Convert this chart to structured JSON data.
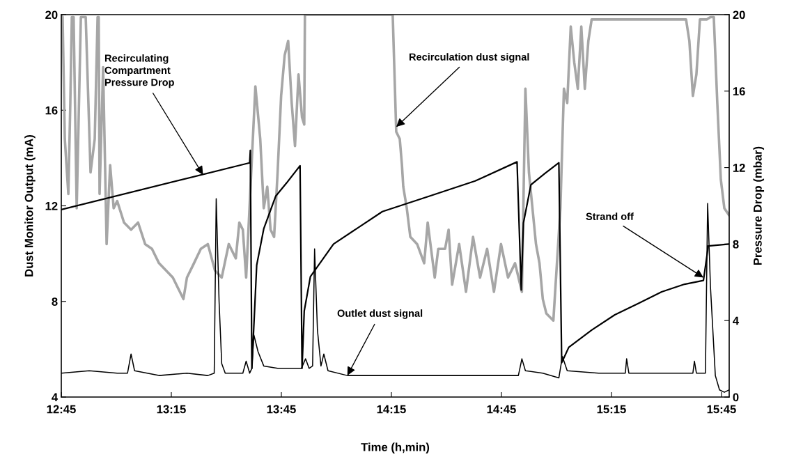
{
  "chart_data": {
    "type": "line",
    "xlabel": "Time (h,min)",
    "ylabel": "Dust Monitor Output (mA)",
    "y2label": "Pressure Drop (mbar)",
    "xlim": [
      12.75,
      15.785
    ],
    "xticks": [
      {
        "value": 12.75,
        "label": "12:45"
      },
      {
        "value": 13.25,
        "label": "13:15"
      },
      {
        "value": 13.75,
        "label": "13:45"
      },
      {
        "value": 14.25,
        "label": "14:15"
      },
      {
        "value": 14.75,
        "label": "14:45"
      },
      {
        "value": 15.25,
        "label": "15:15"
      },
      {
        "value": 15.75,
        "label": "15:45"
      }
    ],
    "ylim": [
      4,
      20
    ],
    "yticks": [
      4,
      8,
      12,
      16,
      20
    ],
    "y2lim": [
      0,
      20
    ],
    "y2ticks": [
      0,
      4,
      8,
      12,
      16,
      20
    ],
    "grid": false,
    "legend": false,
    "marker": "none",
    "series": [
      {
        "color": "#a6a6a6",
        "x": [
          12.75,
          12.756,
          12.766,
          12.782,
          12.791,
          12.798,
          12.806,
          12.82,
          12.839,
          12.861,
          12.883,
          12.902,
          12.915,
          12.92,
          12.924,
          12.94,
          12.956,
          12.972,
          12.988,
          13.004,
          13.035,
          13.067,
          13.099,
          13.131,
          13.162,
          13.194,
          13.226,
          13.257,
          13.289,
          13.305,
          13.321,
          13.353,
          13.384,
          13.416,
          13.448,
          13.479,
          13.511,
          13.543,
          13.559,
          13.575,
          13.59,
          13.632,
          13.654,
          13.67,
          13.686,
          13.701,
          13.717,
          13.733,
          13.749,
          13.765,
          13.781,
          13.797,
          13.812,
          13.828,
          13.844,
          13.854,
          13.857,
          14.256,
          14.272,
          14.288,
          14.298,
          14.304,
          14.32,
          14.336,
          14.367,
          14.399,
          14.415,
          14.447,
          14.463,
          14.494,
          14.51,
          14.526,
          14.558,
          14.589,
          14.621,
          14.653,
          14.685,
          14.716,
          14.748,
          14.78,
          14.812,
          14.843,
          14.859,
          14.875,
          14.891,
          14.907,
          14.923,
          14.938,
          14.954,
          14.986,
          15.018,
          15.034,
          15.049,
          15.065,
          15.081,
          15.097,
          15.113,
          15.129,
          15.145,
          15.16,
          15.176,
          15.589,
          15.604,
          15.62,
          15.636,
          15.652,
          15.668,
          15.684,
          15.7,
          15.715,
          15.731,
          15.747,
          15.763,
          15.785
        ],
        "values": [
          20,
          19.9,
          14.8,
          12.5,
          16.3,
          19.9,
          19.9,
          11.9,
          19.9,
          19.9,
          13.4,
          14.8,
          19.9,
          19.9,
          12.5,
          17.8,
          10.4,
          13.7,
          11.9,
          12.2,
          11.3,
          11.0,
          11.3,
          10.4,
          10.2,
          9.6,
          9.3,
          9.0,
          8.4,
          8.1,
          9.0,
          9.6,
          10.2,
          10.4,
          9.3,
          9.0,
          10.4,
          9.8,
          11.3,
          11.0,
          9.0,
          17.0,
          14.8,
          11.9,
          12.8,
          11.0,
          10.7,
          13.4,
          16.6,
          18.3,
          18.9,
          16.3,
          14.5,
          17.5,
          15.7,
          15.4,
          20,
          20,
          15.1,
          14.8,
          13.7,
          12.8,
          11.9,
          10.7,
          10.4,
          9.6,
          11.3,
          9.0,
          10.2,
          10.2,
          11.0,
          8.7,
          10.4,
          8.4,
          10.7,
          9.0,
          10.2,
          8.4,
          10.4,
          9.0,
          9.6,
          8.4,
          16.9,
          13.4,
          11.9,
          10.4,
          9.6,
          8.1,
          7.5,
          7.2,
          11.9,
          16.9,
          16.3,
          19.5,
          18.0,
          16.9,
          19.5,
          16.9,
          18.9,
          19.8,
          19.8,
          19.8,
          18.9,
          16.6,
          17.5,
          19.8,
          19.8,
          19.8,
          19.9,
          19.9,
          16.3,
          13.1,
          11.9,
          11.6
        ]
      },
      {
        "color": "#000000",
        "x": [
          12.75,
          12.877,
          13.004,
          13.051,
          13.067,
          13.083,
          13.194,
          13.321,
          13.416,
          13.445,
          13.454,
          13.467,
          13.479,
          13.495,
          13.575,
          13.59,
          13.606,
          13.616,
          13.625,
          13.644,
          13.67,
          13.733,
          13.797,
          13.841,
          13.86,
          13.876,
          13.892,
          13.901,
          13.914,
          13.93,
          13.943,
          13.962,
          14.05,
          14.241,
          14.367,
          14.526,
          14.685,
          14.827,
          14.843,
          14.859,
          14.938,
          15.011,
          15.027,
          15.049,
          15.192,
          15.313,
          15.319,
          15.329,
          15.478,
          15.62,
          15.627,
          15.636,
          15.677,
          15.687,
          15.7,
          15.722,
          15.741,
          15.763,
          15.785
        ],
        "values": [
          5.0,
          5.1,
          5.0,
          5.0,
          5.8,
          5.1,
          4.9,
          5.0,
          4.9,
          5.0,
          12.3,
          8.0,
          5.4,
          5.0,
          5.0,
          5.5,
          5.0,
          5.2,
          6.6,
          5.9,
          5.3,
          5.2,
          5.2,
          5.2,
          5.6,
          5.2,
          5.3,
          10.2,
          6.8,
          5.3,
          5.8,
          5.1,
          4.9,
          4.9,
          4.9,
          4.9,
          4.9,
          4.9,
          5.6,
          5.1,
          5.0,
          4.8,
          5.7,
          5.1,
          5.0,
          5.0,
          5.6,
          5.0,
          5.0,
          5.0,
          5.5,
          5.0,
          5.0,
          12.1,
          8.6,
          4.9,
          4.3,
          4.2,
          4.3
        ]
      },
      {
        "color": "#000000",
        "axis": "y2",
        "x": [
          12.75,
          13.606,
          13.609,
          13.616,
          13.638,
          13.67,
          13.724,
          13.774,
          13.835,
          13.844,
          13.854,
          13.882,
          13.987,
          14.209,
          14.421,
          14.631,
          14.821,
          14.84,
          14.85,
          14.884,
          14.948,
          15.011,
          15.024,
          15.056,
          15.16,
          15.265,
          15.373,
          15.478,
          15.582,
          15.668,
          15.69,
          15.785
        ],
        "values": [
          9.8,
          12.25,
          12.9,
          1.5,
          6.9,
          8.8,
          10.5,
          11.2,
          12.1,
          1.5,
          4.5,
          6.3,
          8.0,
          9.7,
          10.5,
          11.3,
          12.3,
          5.6,
          9.1,
          11.1,
          11.7,
          12.25,
          1.8,
          2.6,
          3.5,
          4.3,
          4.9,
          5.5,
          5.9,
          6.1,
          7.9,
          8.0
        ]
      }
    ],
    "annotations": [
      {
        "text": "Recirculating\nCompartment\nPressure Drop",
        "x": 13.394,
        "y": 13.3
      },
      {
        "text": "Recirculation dust signal",
        "x": 14.272,
        "y": 15.3
      },
      {
        "text": "Outlet dust signal",
        "x": 14.05,
        "y": 4.9
      },
      {
        "text": "Strand off",
        "x": 15.668,
        "y": 9.0
      }
    ]
  }
}
